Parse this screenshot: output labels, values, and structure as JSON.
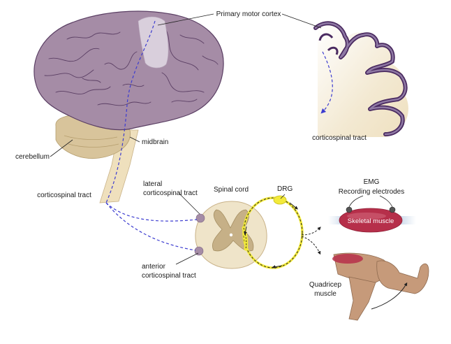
{
  "labels": {
    "primary_motor_cortex": "Primary motor cortex",
    "cerebellum": "cerebellum",
    "midbrain": "midbrain",
    "corticospinal_tract_brainstem": "corticospinal tract",
    "corticospinal_tract_cortex": "corticospinal tract",
    "lateral_tract_line1": "lateral",
    "lateral_tract_line2": "corticospinal tract",
    "anterior_tract_line1": "anterior",
    "anterior_tract_line2": "corticospinal tract",
    "spinal_cord": "Spinal cord",
    "drg": "DRG",
    "emg": "EMG",
    "recording_electrodes": "Recording electrodes",
    "skeletal_muscle": "Skeletal muscle",
    "quadricep_line1": "Quadricep",
    "quadricep_line2": "muscle"
  },
  "colors": {
    "brain": "#a58ca6",
    "brain_outline": "#5b3f64",
    "cortex_purple": "#4a2a60",
    "cortex_light": "#f1e6cc",
    "motor_area": "#d9cfdc",
    "cerebellum": "#d8c49b",
    "brainstem": "#efe0bd",
    "spinal_white": "#efe4c9",
    "spinal_gray": "#c6b087",
    "tract_dot": "#a58ca6",
    "drg_yellow": "#f3ea3a",
    "muscle_red": "#b62f4a",
    "leg_skin": "#c69a7a",
    "pathway_blue": "#3c3cd0"
  }
}
